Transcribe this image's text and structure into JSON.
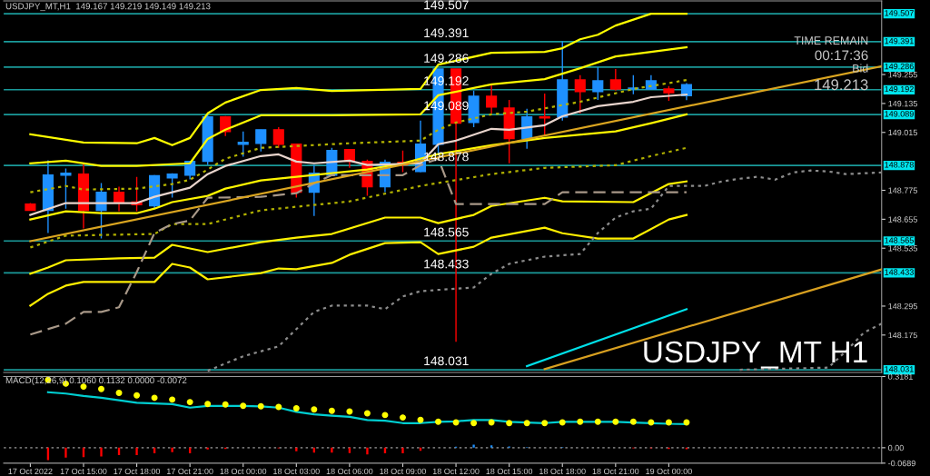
{
  "chart_data": [
    {
      "type": "candlestick",
      "title": "USDJPY_MT,H1  149.167 149.219 149.149 149.213",
      "x": [
        "2022-10-17T12:00",
        "2022-10-17T13:00",
        "2022-10-17T14:00",
        "2022-10-17T15:00",
        "2022-10-17T16:00",
        "2022-10-17T17:00",
        "2022-10-17T18:00",
        "2022-10-17T19:00",
        "2022-10-17T20:00",
        "2022-10-17T21:00",
        "2022-10-17T22:00",
        "2022-10-17T23:00",
        "2022-10-18T00:00",
        "2022-10-18T01:00",
        "2022-10-18T02:00",
        "2022-10-18T03:00",
        "2022-10-18T04:00",
        "2022-10-18T05:00",
        "2022-10-18T06:00",
        "2022-10-18T07:00",
        "2022-10-18T08:00",
        "2022-10-18T09:00",
        "2022-10-18T10:00",
        "2022-10-18T11:00",
        "2022-10-18T12:00",
        "2022-10-18T13:00",
        "2022-10-18T14:00",
        "2022-10-18T15:00",
        "2022-10-18T16:00",
        "2022-10-18T17:00",
        "2022-10-18T18:00",
        "2022-10-18T19:00",
        "2022-10-18T20:00",
        "2022-10-18T21:00",
        "2022-10-18T22:00",
        "2022-10-18T23:00",
        "2022-10-19T00:00",
        "2022-10-19T01:00"
      ],
      "ohlc": [
        [
          148.718,
          148.722,
          148.69,
          148.692
        ],
        [
          148.692,
          148.899,
          148.598,
          148.838
        ],
        [
          148.838,
          148.865,
          148.699,
          148.846
        ],
        [
          148.842,
          148.887,
          148.617,
          148.692
        ],
        [
          148.692,
          148.805,
          148.575,
          148.767
        ],
        [
          148.767,
          148.79,
          148.688,
          148.726
        ],
        [
          148.726,
          148.831,
          148.688,
          148.715
        ],
        [
          148.711,
          148.838,
          148.699,
          148.835
        ],
        [
          148.827,
          148.846,
          148.745,
          148.842
        ],
        [
          148.838,
          148.895,
          148.82,
          148.895
        ],
        [
          148.895,
          149.09,
          148.88,
          149.079
        ],
        [
          149.079,
          149.083,
          149.0,
          149.019
        ],
        [
          148.966,
          149.019,
          148.914,
          148.974
        ],
        [
          148.97,
          149.026,
          148.936,
          149.026
        ],
        [
          149.026,
          149.037,
          148.951,
          148.966
        ],
        [
          148.966,
          148.966,
          148.745,
          148.767
        ],
        [
          148.767,
          148.88,
          148.669,
          148.846
        ],
        [
          148.838,
          148.951,
          148.838,
          148.94
        ],
        [
          148.944,
          148.944,
          148.868,
          148.895
        ],
        [
          148.895,
          148.902,
          148.752,
          148.79
        ],
        [
          148.79,
          148.902,
          148.767,
          148.891
        ],
        [
          148.891,
          148.94,
          148.85,
          148.88
        ],
        [
          148.853,
          149.064,
          148.85,
          148.966
        ],
        [
          148.966,
          149.278,
          148.925,
          149.278
        ],
        [
          149.278,
          149.278,
          148.147,
          149.053
        ],
        [
          149.056,
          149.188,
          149.037,
          149.165
        ],
        [
          149.165,
          149.214,
          149.094,
          149.12
        ],
        [
          149.116,
          149.15,
          148.887,
          148.989
        ],
        [
          148.989,
          149.113,
          148.947,
          149.079
        ],
        [
          149.079,
          149.176,
          149.0,
          149.075
        ],
        [
          149.079,
          149.394,
          149.064,
          149.233
        ],
        [
          149.233,
          149.252,
          149.094,
          149.184
        ],
        [
          149.184,
          149.285,
          149.15,
          149.229
        ],
        [
          149.233,
          149.278,
          149.188,
          149.195
        ],
        [
          149.195,
          149.252,
          149.173,
          149.199
        ],
        [
          149.195,
          149.252,
          149.195,
          149.229
        ],
        [
          149.195,
          149.207,
          149.146,
          149.18
        ],
        [
          149.167,
          149.219,
          149.149,
          149.213
        ]
      ],
      "colors": [
        "#ff0000",
        "#1e90ff",
        "#1e90ff",
        "#ff0000",
        "#1e90ff",
        "#ff0000",
        "#ff0000",
        "#1e90ff",
        "#1e90ff",
        "#1e90ff",
        "#1e90ff",
        "#ff0000",
        "#1e90ff",
        "#1e90ff",
        "#ff0000",
        "#ff0000",
        "#1e90ff",
        "#1e90ff",
        "#ff0000",
        "#ff0000",
        "#1e90ff",
        "#ff0000",
        "#1e90ff",
        "#1e90ff",
        "#ff0000",
        "#1e90ff",
        "#ff0000",
        "#ff0000",
        "#1e90ff",
        "#ff0000",
        "#1e90ff",
        "#ff0000",
        "#1e90ff",
        "#ff0000",
        "#1e90ff",
        "#1e90ff",
        "#ff0000",
        "#1e90ff"
      ],
      "series": [
        {
          "type": "line",
          "color": "#ffff00",
          "line_style": "solid",
          "x": [
            "2022-10-17T12:00",
            "2022-10-17T15:00",
            "2022-10-17T18:00",
            "2022-10-17T19:00",
            "2022-10-17T20:00",
            "2022-10-17T21:00",
            "2022-10-17T22:00",
            "2022-10-17T23:00",
            "2022-10-18T01:00",
            "2022-10-18T03:00",
            "2022-10-18T05:00",
            "2022-10-18T10:00",
            "2022-10-18T11:00",
            "2022-10-18T14:00",
            "2022-10-18T17:00",
            "2022-10-18T18:00",
            "2022-10-18T19:00",
            "2022-10-18T20:00",
            "2022-10-18T21:00",
            "2022-10-18T23:00",
            "2022-10-19T01:00"
          ],
          "values": [
            149.007,
            148.973,
            148.97,
            148.992,
            148.962,
            148.992,
            149.094,
            149.139,
            149.191,
            149.199,
            149.187,
            149.195,
            149.296,
            149.345,
            149.349,
            149.364,
            149.401,
            149.42,
            149.458,
            149.507,
            149.507
          ]
        },
        {
          "type": "line",
          "color": "#fffb00",
          "line_style": "solid",
          "x": [
            "2022-10-17T12:00",
            "2022-10-17T14:00",
            "2022-10-17T16:00",
            "2022-10-17T18:00",
            "2022-10-17T21:00",
            "2022-10-17T22:00",
            "2022-10-17T23:00",
            "2022-10-18T01:00",
            "2022-10-18T05:00",
            "2022-10-18T10:00",
            "2022-10-18T11:00",
            "2022-10-18T14:00",
            "2022-10-18T17:00",
            "2022-10-18T19:00",
            "2022-10-18T21:00",
            "2022-10-18T23:00",
            "2022-10-19T01:00"
          ],
          "values": [
            148.887,
            148.898,
            148.876,
            148.876,
            148.887,
            148.988,
            149.026,
            149.086,
            149.086,
            149.09,
            149.169,
            149.214,
            149.236,
            149.281,
            149.33,
            149.349,
            149.368
          ]
        },
        {
          "type": "line",
          "color": "#fff700",
          "line_style": "solid",
          "x": [
            "2022-10-17T12:00",
            "2022-10-17T14:00",
            "2022-10-17T16:00",
            "2022-10-17T18:00",
            "2022-10-17T19:00",
            "2022-10-17T20:00",
            "2022-10-17T22:00",
            "2022-10-17T23:00",
            "2022-10-18T01:00",
            "2022-10-18T03:00",
            "2022-10-18T07:00",
            "2022-10-18T09:00",
            "2022-10-18T11:00",
            "2022-10-18T14:00",
            "2022-10-18T17:00",
            "2022-10-18T21:00",
            "2022-10-18T23:00",
            "2022-10-19T01:00"
          ],
          "values": [
            148.654,
            148.688,
            148.68,
            148.68,
            148.699,
            148.726,
            148.752,
            148.782,
            148.816,
            148.831,
            148.861,
            148.887,
            148.925,
            148.962,
            148.992,
            149.019,
            149.053,
            149.09
          ]
        },
        {
          "type": "line",
          "color": "#fff300",
          "line_style": "solid",
          "x": [
            "2022-10-17T12:00",
            "2022-10-17T13:00",
            "2022-10-17T14:00",
            "2022-10-17T17:00",
            "2022-10-17T19:00",
            "2022-10-17T20:00",
            "2022-10-17T22:00",
            "2022-10-18T01:00",
            "2022-10-18T03:00",
            "2022-10-18T05:00",
            "2022-10-18T08:00",
            "2022-10-18T10:00",
            "2022-10-18T11:00",
            "2022-10-18T13:00",
            "2022-10-18T14:00",
            "2022-10-18T17:00",
            "2022-10-18T18:00",
            "2022-10-18T22:00",
            "2022-10-19T00:00",
            "2022-10-19T01:00"
          ],
          "values": [
            148.429,
            148.455,
            148.485,
            148.493,
            148.496,
            148.549,
            148.519,
            148.56,
            148.579,
            148.594,
            148.662,
            148.662,
            148.639,
            148.673,
            148.71,
            148.744,
            148.729,
            148.726,
            148.801,
            148.812
          ]
        },
        {
          "type": "line",
          "color": "#ffef00",
          "line_style": "solid",
          "x": [
            "2022-10-17T12:00",
            "2022-10-17T13:00",
            "2022-10-17T14:00",
            "2022-10-17T15:00",
            "2022-10-17T19:00",
            "2022-10-17T20:00",
            "2022-10-17T21:00",
            "2022-10-17T22:00",
            "2022-10-18T01:00",
            "2022-10-18T02:00",
            "2022-10-18T03:00",
            "2022-10-18T05:00",
            "2022-10-18T06:00",
            "2022-10-18T08:00",
            "2022-10-18T10:00",
            "2022-10-18T11:00",
            "2022-10-18T13:00",
            "2022-10-18T14:00",
            "2022-10-18T17:00",
            "2022-10-18T18:00",
            "2022-10-18T20:00",
            "2022-10-18T22:00",
            "2022-10-19T00:00",
            "2022-10-19T01:00"
          ],
          "values": [
            148.297,
            148.346,
            148.38,
            148.395,
            148.395,
            148.47,
            148.455,
            148.406,
            148.432,
            148.451,
            148.448,
            148.474,
            148.508,
            148.556,
            148.56,
            148.511,
            148.541,
            148.579,
            148.62,
            148.597,
            148.575,
            148.575,
            148.654,
            148.673
          ]
        },
        {
          "type": "line",
          "color": "#e8d4cc",
          "line_style": "solid",
          "x": [
            "2022-10-17T12:00",
            "2022-10-17T14:00",
            "2022-10-17T18:00",
            "2022-10-17T19:00",
            "2022-10-17T21:00",
            "2022-10-17T22:00",
            "2022-10-17T23:00",
            "2022-10-18T01:00",
            "2022-10-18T02:00",
            "2022-10-18T03:00",
            "2022-10-18T04:00",
            "2022-10-18T06:00",
            "2022-10-18T07:00",
            "2022-10-18T10:00",
            "2022-10-18T11:00",
            "2022-10-18T12:00",
            "2022-10-18T14:00",
            "2022-10-18T15:00",
            "2022-10-18T17:00",
            "2022-10-18T18:00",
            "2022-10-18T20:00",
            "2022-10-18T22:00",
            "2022-10-18T23:00",
            "2022-10-19T01:00"
          ],
          "values": [
            148.673,
            148.722,
            148.722,
            148.748,
            148.786,
            148.842,
            148.876,
            148.917,
            148.924,
            148.894,
            148.887,
            148.898,
            148.88,
            148.887,
            148.966,
            148.981,
            149.03,
            149.026,
            149.045,
            149.082,
            149.124,
            149.142,
            149.161,
            149.172
          ]
        },
        {
          "type": "line",
          "color": "#b5b500",
          "line_style": "dotted",
          "x": [
            "2022-10-17T12:00",
            "2022-10-17T14:00",
            "2022-10-17T15:00",
            "2022-10-17T18:00",
            "2022-10-17T20:00",
            "2022-10-17T21:00",
            "2022-10-17T22:00",
            "2022-10-17T23:00",
            "2022-10-18T01:00",
            "2022-10-18T06:00",
            "2022-10-18T10:00",
            "2022-10-18T11:00",
            "2022-10-18T12:00",
            "2022-10-18T14:00",
            "2022-10-18T16:00",
            "2022-10-18T19:00",
            "2022-10-18T22:00",
            "2022-10-19T01:00"
          ],
          "values": [
            148.767,
            148.793,
            148.778,
            148.782,
            148.801,
            148.819,
            148.861,
            148.906,
            148.951,
            148.97,
            148.981,
            149.026,
            149.056,
            149.09,
            149.101,
            149.142,
            149.195,
            149.232
          ]
        },
        {
          "type": "line",
          "color": "#b0b000",
          "line_style": "dotted",
          "x": [
            "2022-10-17T12:00",
            "2022-10-17T14:00",
            "2022-10-17T19:00",
            "2022-10-17T20:00",
            "2022-10-17T22:00",
            "2022-10-18T01:00",
            "2022-10-18T06:00",
            "2022-10-18T10:00",
            "2022-10-18T14:00",
            "2022-10-18T17:00",
            "2022-10-18T21:00",
            "2022-10-18T23:00",
            "2022-10-19T01:00"
          ],
          "values": [
            148.538,
            148.587,
            148.594,
            148.635,
            148.635,
            148.692,
            148.729,
            148.793,
            148.842,
            148.868,
            148.879,
            148.917,
            148.951
          ]
        },
        {
          "type": "line",
          "color": "#a89888",
          "line_style": "dashed",
          "x": [
            "2022-10-17T12:00",
            "2022-10-17T14:00",
            "2022-10-17T15:00",
            "2022-10-17T16:00",
            "2022-10-17T17:00",
            "2022-10-17T18:00",
            "2022-10-17T19:00",
            "2022-10-17T20:00",
            "2022-10-17T21:00",
            "2022-10-17T22:00",
            "2022-10-18T01:00",
            "2022-10-18T03:00",
            "2022-10-18T04:00",
            "2022-10-18T05:00",
            "2022-10-18T09:00",
            "2022-10-18T10:00",
            "2022-10-18T11:00",
            "2022-10-18T12:00",
            "2022-10-18T17:00",
            "2022-10-18T18:00",
            "2022-10-19T01:00"
          ],
          "values": [
            148.177,
            148.222,
            148.271,
            148.271,
            148.29,
            148.436,
            148.598,
            148.635,
            148.65,
            148.744,
            148.748,
            148.763,
            148.804,
            148.838,
            148.838,
            148.879,
            148.906,
            148.718,
            148.718,
            148.767,
            148.767
          ]
        },
        {
          "type": "line",
          "color": "#8c8c8c",
          "line_style": "dotted",
          "x": [
            "2022-10-17T22:00",
            "2022-10-18T00:00",
            "2022-10-18T02:00",
            "2022-10-18T04:00",
            "2022-10-18T05:00",
            "2022-10-18T07:00",
            "2022-10-18T08:00",
            "2022-10-18T09:00",
            "2022-10-18T10:00",
            "2022-10-18T13:00",
            "2022-10-18T14:00",
            "2022-10-18T15:00",
            "2022-10-18T17:00",
            "2022-10-18T19:00",
            "2022-10-18T20:00",
            "2022-10-18T21:00",
            "2022-10-18T22:00",
            "2022-10-18T23:00",
            "2022-10-19T00:00",
            "2022-10-19T02:00",
            "2022-10-19T03:00",
            "2022-10-19T04:00",
            "2022-10-19T05:00",
            "2022-10-19T06:00",
            "2022-10-19T07:00",
            "2022-10-19T08:00",
            "2022-10-19T09:00",
            "2022-10-19T10:00",
            "2022-10-19T12:00"
          ],
          "values": [
            148.027,
            148.087,
            148.128,
            148.271,
            148.297,
            148.297,
            148.282,
            148.335,
            148.357,
            148.372,
            148.429,
            148.47,
            148.5,
            148.511,
            148.598,
            148.662,
            148.688,
            148.699,
            148.793,
            148.793,
            148.812,
            148.823,
            148.831,
            148.819,
            148.849,
            148.857,
            148.853,
            148.842,
            148.849
          ]
        },
        {
          "type": "line",
          "color": "#888888",
          "line_style": "dotted",
          "x": [
            "2022-10-19T04:00",
            "2022-10-19T09:00",
            "2022-10-19T10:00",
            "2022-10-19T11:00",
            "2022-10-19T12:00"
          ],
          "values": [
            148.031,
            148.04,
            148.109,
            148.185,
            148.222
          ]
        },
        {
          "type": "line",
          "color": "#daa520",
          "line_style": "solid",
          "x": [
            "2022-10-17T12:00",
            "2022-10-19T12:00"
          ],
          "values": [
            148.564,
            149.289
          ]
        },
        {
          "type": "line",
          "color": "#d8a020",
          "line_style": "solid",
          "x": [
            "2022-10-18T17:00",
            "2022-10-19T12:00"
          ],
          "values": [
            148.034,
            148.447
          ]
        },
        {
          "type": "line",
          "color": "#00e0e8",
          "line_style": "solid",
          "x": [
            "2022-10-18T16:00",
            "2022-10-19T01:00"
          ],
          "values": [
            148.046,
            148.282
          ]
        }
      ],
      "ref_lines": [
        {
          "axis": "y",
          "value": 149.507,
          "label": "149.507",
          "color": "#1a9a9a"
        },
        {
          "axis": "y",
          "value": 149.391,
          "label": "149.391",
          "color": "#1a9a9a"
        },
        {
          "axis": "y",
          "value": 149.286,
          "label": "149.286",
          "color": "#1a9a9a"
        },
        {
          "axis": "y",
          "value": 149.192,
          "label": "149.192",
          "color": "#1a9a9a"
        },
        {
          "axis": "y",
          "value": 149.089,
          "label": "149.089",
          "color": "#1a9a9a"
        },
        {
          "axis": "y",
          "value": 148.878,
          "label": "148.878",
          "color": "#1a9a9a"
        },
        {
          "axis": "y",
          "value": 148.565,
          "label": "148.565",
          "color": "#1a9a9a"
        },
        {
          "axis": "y",
          "value": 148.433,
          "label": "148.433",
          "color": "#1a9a9a"
        },
        {
          "axis": "y",
          "value": 148.031,
          "label": "148.031",
          "color": "#1a9a9a"
        }
      ],
      "annotations": [
        "TIME REMAIN",
        "00:17:36",
        "Bid",
        "149.213",
        "USDJPY_MT H1"
      ],
      "xlim": [
        "2022-10-17T10:30",
        "2022-10-19T12:00"
      ],
      "ylim": [
        148.02,
        149.56
      ],
      "yticks": [
        149.255,
        149.135,
        149.015,
        148.775,
        148.655,
        148.535,
        148.295,
        148.175
      ],
      "tick_labels": "y",
      "grid": false,
      "legend": false
    },
    {
      "type": "bar",
      "title": "MACD(12,26,9) 0.1060 0.1132 0.0000 -0.0072",
      "x": [
        "2022-10-17T13:00",
        "2022-10-17T14:00",
        "2022-10-17T15:00",
        "2022-10-17T16:00",
        "2022-10-17T17:00",
        "2022-10-17T18:00",
        "2022-10-17T19:00",
        "2022-10-17T20:00",
        "2022-10-17T21:00",
        "2022-10-17T22:00",
        "2022-10-17T23:00",
        "2022-10-18T00:00",
        "2022-10-18T01:00",
        "2022-10-18T02:00",
        "2022-10-18T03:00",
        "2022-10-18T04:00",
        "2022-10-18T05:00",
        "2022-10-18T06:00",
        "2022-10-18T07:00",
        "2022-10-18T08:00",
        "2022-10-18T09:00",
        "2022-10-18T10:00",
        "2022-10-18T11:00",
        "2022-10-18T12:00",
        "2022-10-18T13:00",
        "2022-10-18T14:00",
        "2022-10-18T15:00",
        "2022-10-18T16:00",
        "2022-10-18T17:00",
        "2022-10-18T18:00",
        "2022-10-18T19:00",
        "2022-10-18T20:00",
        "2022-10-18T21:00",
        "2022-10-18T22:00",
        "2022-10-18T23:00",
        "2022-10-19T00:00",
        "2022-10-19T01:00"
      ],
      "series": [
        {
          "type": "bar",
          "colors": [
            "#ff0000",
            "#ff0000",
            "#ff0000",
            "#ff0000",
            "#ff0000",
            "#ff0000",
            "#ff0000",
            "#ff0000",
            "#ff0000",
            "#ff0000",
            "#ff0000",
            "#ff0000",
            "#ff0000",
            "#ff0000",
            "#ff0000",
            "#ff0000",
            "#ff0000",
            "#ff0000",
            "#ff0000",
            "#ff0000",
            "#ff0000",
            "#ff0000",
            "#ff0000",
            "#1e90ff",
            "#1e90ff",
            "#1e90ff",
            "#1e90ff",
            "#1e90ff",
            "#1e90ff",
            "#1e90ff",
            "#1e90ff",
            "#1e90ff",
            "#1e90ff",
            "#ff0000",
            "#ff0000",
            "#ff0000",
            "#ff0000"
          ],
          "values": [
            -0.055,
            -0.044,
            -0.042,
            -0.039,
            -0.033,
            -0.033,
            -0.025,
            -0.02,
            -0.025,
            -0.008,
            -0.006,
            0,
            0,
            -0.003,
            -0.016,
            -0.022,
            -0.022,
            -0.024,
            -0.03,
            -0.025,
            -0.025,
            -0.014,
            0,
            0.005,
            0.014,
            0.011,
            0.006,
            0.003,
            0,
            0.003,
            0,
            0,
            0,
            -0.003,
            -0.003,
            -0.006,
            -0.007
          ]
        },
        {
          "type": "line",
          "color": "#00ced1",
          "line_style": "solid",
          "values": [
            0.248,
            0.242,
            0.231,
            0.223,
            0.212,
            0.201,
            0.198,
            0.195,
            0.179,
            0.187,
            0.187,
            0.187,
            0.185,
            0.179,
            0.16,
            0.149,
            0.143,
            0.138,
            0.124,
            0.121,
            0.11,
            0.11,
            0.116,
            0.118,
            0.124,
            0.124,
            0.116,
            0.113,
            0.11,
            0.116,
            0.116,
            0.116,
            0.116,
            0.113,
            0.11,
            0.107,
            0.106
          ]
        },
        {
          "type": "scatter",
          "color": "#ffff00",
          "marker": "circle",
          "values": [
            0.303,
            0.286,
            0.273,
            0.262,
            0.245,
            0.234,
            0.223,
            0.215,
            0.204,
            0.195,
            0.193,
            0.187,
            0.185,
            0.182,
            0.176,
            0.171,
            0.165,
            0.162,
            0.154,
            0.146,
            0.135,
            0.124,
            0.116,
            0.113,
            0.11,
            0.113,
            0.11,
            0.11,
            0.11,
            0.113,
            0.116,
            0.116,
            0.116,
            0.116,
            0.113,
            0.113,
            0.113
          ]
        }
      ],
      "ref_lines": [
        {
          "axis": "y",
          "value": 0,
          "color": "#707070",
          "line_style": "dotted"
        }
      ],
      "xlim": [
        "2022-10-17T10:30",
        "2022-10-19T12:00"
      ],
      "xticks": [
        {
          "value": "2022-10-17T12:00",
          "label": "17 Oct 2022"
        },
        {
          "value": "2022-10-17T15:00",
          "label": "17 Oct 15:00"
        },
        {
          "value": "2022-10-17T18:00",
          "label": "17 Oct 18:00"
        },
        {
          "value": "2022-10-17T21:00",
          "label": "17 Oct 21:00"
        },
        {
          "value": "2022-10-18T00:00",
          "label": "18 Oct 00:00"
        },
        {
          "value": "2022-10-18T03:00",
          "label": "18 Oct 03:00"
        },
        {
          "value": "2022-10-18T06:00",
          "label": "18 Oct 06:00"
        },
        {
          "value": "2022-10-18T09:00",
          "label": "18 Oct 09:00"
        },
        {
          "value": "2022-10-18T12:00",
          "label": "18 Oct 12:00"
        },
        {
          "value": "2022-10-18T15:00",
          "label": "18 Oct 15:00"
        },
        {
          "value": "2022-10-18T18:00",
          "label": "18 Oct 18:00"
        },
        {
          "value": "2022-10-18T21:00",
          "label": "18 Oct 21:00"
        },
        {
          "value": "2022-10-19T00:00",
          "label": "19 Oct 00:00"
        }
      ],
      "ylim": [
        -0.0689,
        0.3181
      ],
      "yticks": [
        0.3181,
        {
          "value": 0,
          "label": "0.00"
        },
        -0.0689
      ],
      "grid": false,
      "legend": false
    }
  ]
}
